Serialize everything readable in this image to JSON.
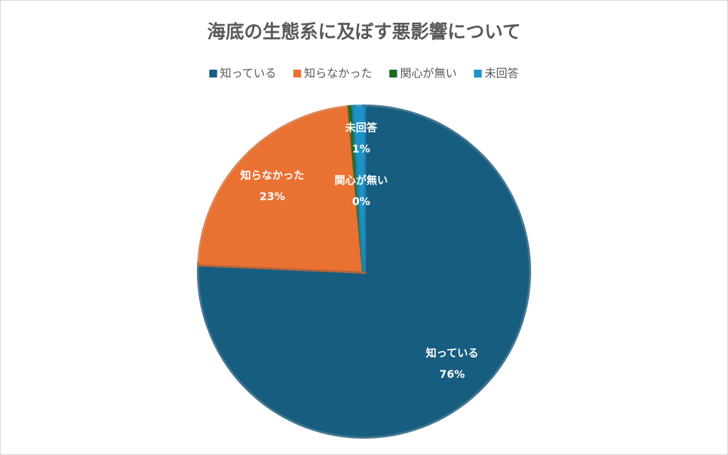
{
  "chart_data": {
    "type": "pie",
    "title": "海底の生態系に及ぼす悪影響について",
    "categories": [
      "知っている",
      "知らなかった",
      "関心が無い",
      "未回答"
    ],
    "values": [
      76,
      23,
      0.4,
      1
    ],
    "value_labels": [
      "76%",
      "23%",
      "0%",
      "1%"
    ],
    "colors": [
      "#175d7f",
      "#e97132",
      "#196b24",
      "#1e93c8"
    ],
    "legend": "top"
  }
}
